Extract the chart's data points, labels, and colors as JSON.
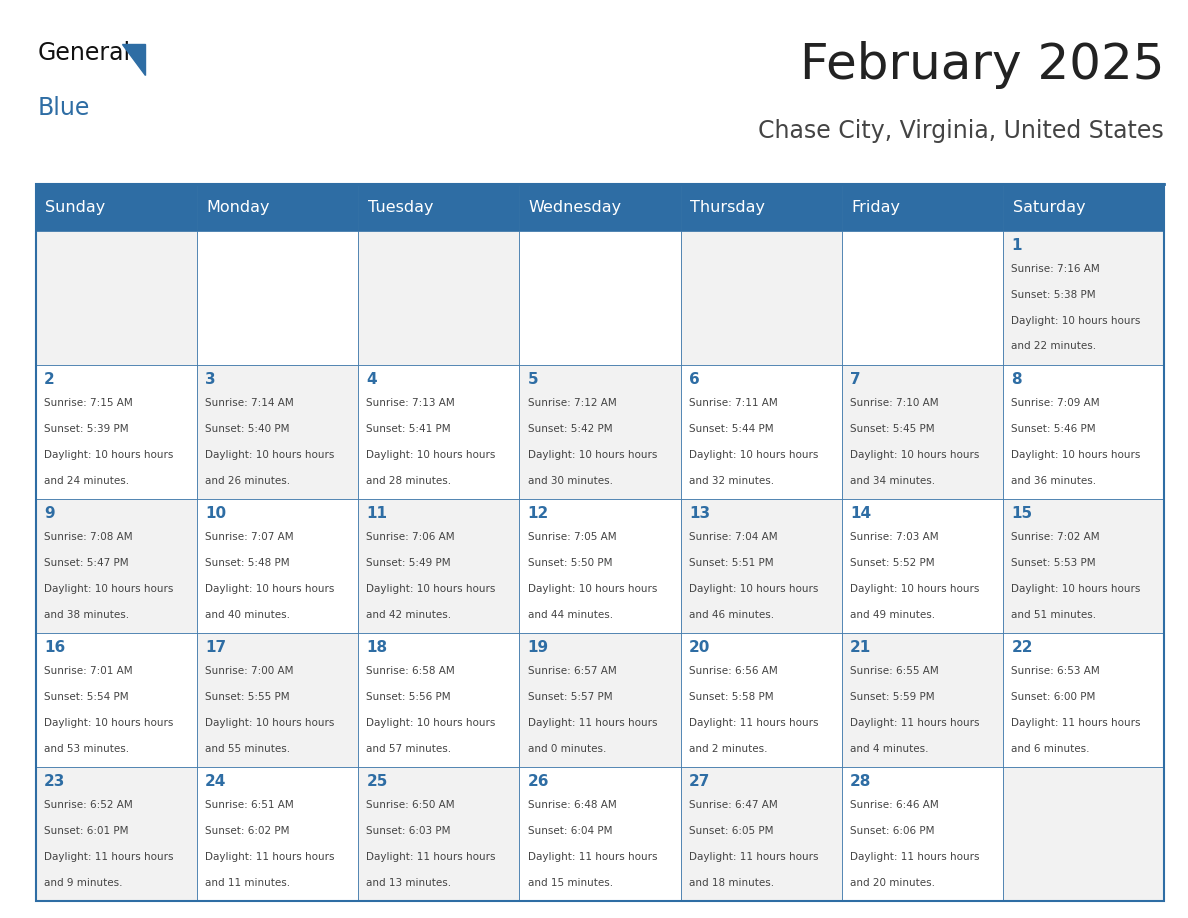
{
  "title": "February 2025",
  "subtitle": "Chase City, Virginia, United States",
  "header_bg": "#2E6DA4",
  "header_text_color": "#FFFFFF",
  "cell_bg_even": "#F2F2F2",
  "cell_bg_odd": "#FFFFFF",
  "border_color": "#2E6DA4",
  "title_color": "#222222",
  "subtitle_color": "#444444",
  "day_number_color": "#2E6DA4",
  "cell_text_color": "#444444",
  "logo_general_color": "#111111",
  "logo_blue_color": "#2E6DA4",
  "days_of_week": [
    "Sunday",
    "Monday",
    "Tuesday",
    "Wednesday",
    "Thursday",
    "Friday",
    "Saturday"
  ],
  "calendar": [
    [
      null,
      null,
      null,
      null,
      null,
      null,
      1
    ],
    [
      2,
      3,
      4,
      5,
      6,
      7,
      8
    ],
    [
      9,
      10,
      11,
      12,
      13,
      14,
      15
    ],
    [
      16,
      17,
      18,
      19,
      20,
      21,
      22
    ],
    [
      23,
      24,
      25,
      26,
      27,
      28,
      null
    ]
  ],
  "cell_data": {
    "1": {
      "sunrise": "7:16 AM",
      "sunset": "5:38 PM",
      "daylight": "10 hours and 22 minutes."
    },
    "2": {
      "sunrise": "7:15 AM",
      "sunset": "5:39 PM",
      "daylight": "10 hours and 24 minutes."
    },
    "3": {
      "sunrise": "7:14 AM",
      "sunset": "5:40 PM",
      "daylight": "10 hours and 26 minutes."
    },
    "4": {
      "sunrise": "7:13 AM",
      "sunset": "5:41 PM",
      "daylight": "10 hours and 28 minutes."
    },
    "5": {
      "sunrise": "7:12 AM",
      "sunset": "5:42 PM",
      "daylight": "10 hours and 30 minutes."
    },
    "6": {
      "sunrise": "7:11 AM",
      "sunset": "5:44 PM",
      "daylight": "10 hours and 32 minutes."
    },
    "7": {
      "sunrise": "7:10 AM",
      "sunset": "5:45 PM",
      "daylight": "10 hours and 34 minutes."
    },
    "8": {
      "sunrise": "7:09 AM",
      "sunset": "5:46 PM",
      "daylight": "10 hours and 36 minutes."
    },
    "9": {
      "sunrise": "7:08 AM",
      "sunset": "5:47 PM",
      "daylight": "10 hours and 38 minutes."
    },
    "10": {
      "sunrise": "7:07 AM",
      "sunset": "5:48 PM",
      "daylight": "10 hours and 40 minutes."
    },
    "11": {
      "sunrise": "7:06 AM",
      "sunset": "5:49 PM",
      "daylight": "10 hours and 42 minutes."
    },
    "12": {
      "sunrise": "7:05 AM",
      "sunset": "5:50 PM",
      "daylight": "10 hours and 44 minutes."
    },
    "13": {
      "sunrise": "7:04 AM",
      "sunset": "5:51 PM",
      "daylight": "10 hours and 46 minutes."
    },
    "14": {
      "sunrise": "7:03 AM",
      "sunset": "5:52 PM",
      "daylight": "10 hours and 49 minutes."
    },
    "15": {
      "sunrise": "7:02 AM",
      "sunset": "5:53 PM",
      "daylight": "10 hours and 51 minutes."
    },
    "16": {
      "sunrise": "7:01 AM",
      "sunset": "5:54 PM",
      "daylight": "10 hours and 53 minutes."
    },
    "17": {
      "sunrise": "7:00 AM",
      "sunset": "5:55 PM",
      "daylight": "10 hours and 55 minutes."
    },
    "18": {
      "sunrise": "6:58 AM",
      "sunset": "5:56 PM",
      "daylight": "10 hours and 57 minutes."
    },
    "19": {
      "sunrise": "6:57 AM",
      "sunset": "5:57 PM",
      "daylight": "11 hours and 0 minutes."
    },
    "20": {
      "sunrise": "6:56 AM",
      "sunset": "5:58 PM",
      "daylight": "11 hours and 2 minutes."
    },
    "21": {
      "sunrise": "6:55 AM",
      "sunset": "5:59 PM",
      "daylight": "11 hours and 4 minutes."
    },
    "22": {
      "sunrise": "6:53 AM",
      "sunset": "6:00 PM",
      "daylight": "11 hours and 6 minutes."
    },
    "23": {
      "sunrise": "6:52 AM",
      "sunset": "6:01 PM",
      "daylight": "11 hours and 9 minutes."
    },
    "24": {
      "sunrise": "6:51 AM",
      "sunset": "6:02 PM",
      "daylight": "11 hours and 11 minutes."
    },
    "25": {
      "sunrise": "6:50 AM",
      "sunset": "6:03 PM",
      "daylight": "11 hours and 13 minutes."
    },
    "26": {
      "sunrise": "6:48 AM",
      "sunset": "6:04 PM",
      "daylight": "11 hours and 15 minutes."
    },
    "27": {
      "sunrise": "6:47 AM",
      "sunset": "6:05 PM",
      "daylight": "11 hours and 18 minutes."
    },
    "28": {
      "sunrise": "6:46 AM",
      "sunset": "6:06 PM",
      "daylight": "11 hours and 20 minutes."
    }
  }
}
